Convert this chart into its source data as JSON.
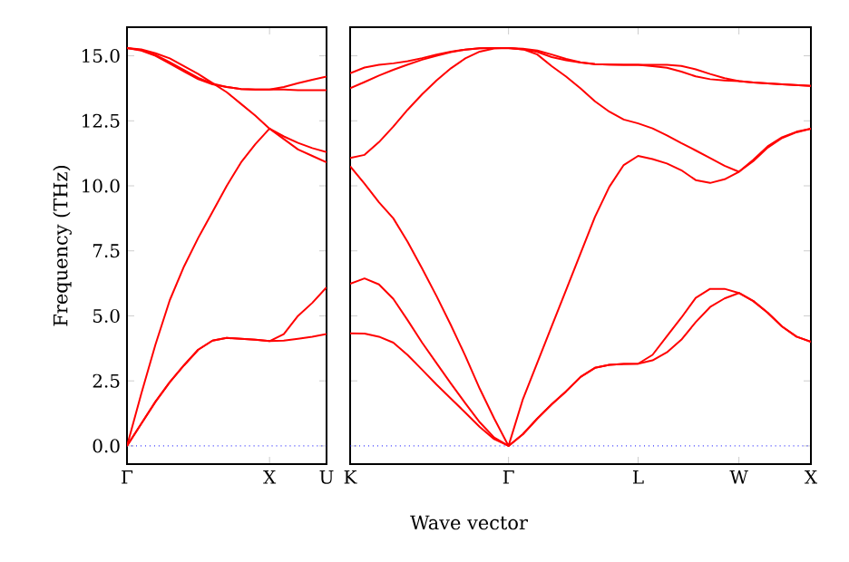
{
  "chart_data": [
    {
      "type": "line",
      "ylabel": "Frequency (THz)",
      "xlabel": "Wave vector",
      "categories": [
        "Γ",
        null,
        null,
        null,
        null,
        null,
        null,
        null,
        null,
        null,
        "X",
        null,
        null,
        null,
        "U"
      ],
      "series": [
        {
          "color": "#ff0000",
          "values": [
            0,
            0.85,
            1.7,
            2.45,
            3.1,
            3.7,
            4.05,
            4.15,
            4.12,
            4.08,
            4.03,
            4.05,
            4.12,
            4.2,
            4.3
          ]
        },
        {
          "color": "#ff0000",
          "values": [
            0,
            0.85,
            1.7,
            2.45,
            3.1,
            3.7,
            4.05,
            4.15,
            4.12,
            4.08,
            4.03,
            4.3,
            5.0,
            5.5,
            6.1
          ]
        },
        {
          "color": "#ff0000",
          "values": [
            0,
            2.0,
            3.9,
            5.6,
            6.9,
            8.0,
            9.0,
            10.0,
            10.9,
            11.6,
            12.2,
            11.8,
            11.4,
            11.15,
            10.9
          ]
        },
        {
          "color": "#ff0000",
          "values": [
            15.3,
            15.25,
            15.1,
            14.9,
            14.6,
            14.3,
            13.95,
            13.6,
            13.15,
            12.7,
            12.2,
            11.9,
            11.65,
            11.45,
            11.3
          ]
        },
        {
          "color": "#ff0000",
          "values": [
            15.3,
            15.2,
            15.0,
            14.7,
            14.4,
            14.1,
            13.9,
            13.8,
            13.72,
            13.7,
            13.7,
            13.7,
            13.68,
            13.68,
            13.68
          ]
        },
        {
          "color": "#ff0000",
          "values": [
            15.3,
            15.22,
            15.03,
            14.75,
            14.45,
            14.15,
            13.93,
            13.8,
            13.72,
            13.7,
            13.7,
            13.8,
            13.95,
            14.08,
            14.2
          ]
        }
      ],
      "ylim": [
        -0.7,
        16.1
      ],
      "yticks": [
        {
          "value": 0,
          "label": "0.0"
        },
        {
          "value": 2.5,
          "label": "2.5"
        },
        {
          "value": 5,
          "label": "5.0"
        },
        {
          "value": 7.5,
          "label": "7.5"
        },
        {
          "value": 10,
          "label": "10.0"
        },
        {
          "value": 12.5,
          "label": "12.5"
        },
        {
          "value": 15,
          "label": "15.0"
        }
      ],
      "ref_lines": [
        {
          "axis": "y",
          "value": 0,
          "color": "#0000ff",
          "line_style": "dotted"
        }
      ]
    },
    {
      "type": "line",
      "categories": [
        "K",
        null,
        null,
        null,
        null,
        null,
        null,
        null,
        null,
        null,
        null,
        "Γ",
        null,
        null,
        null,
        null,
        null,
        null,
        null,
        null,
        "L",
        null,
        null,
        null,
        null,
        null,
        null,
        "W",
        null,
        null,
        null,
        null,
        "X"
      ],
      "series": [
        {
          "color": "#ff0000",
          "values": [
            14.33,
            14.55,
            14.65,
            14.71,
            14.79,
            14.91,
            15.05,
            15.16,
            15.24,
            15.29,
            15.3,
            15.3,
            15.27,
            15.2,
            15.05,
            14.88,
            14.75,
            14.68,
            14.66,
            14.65,
            14.65,
            14.65,
            14.65,
            14.61,
            14.48,
            14.3,
            14.14,
            14.03,
            13.97,
            13.94,
            13.9,
            13.87,
            13.84
          ]
        },
        {
          "color": "#ff0000",
          "values": [
            13.75,
            13.99,
            14.24,
            14.46,
            14.66,
            14.85,
            15.0,
            15.14,
            15.24,
            15.29,
            15.3,
            15.3,
            15.25,
            15.15,
            14.95,
            14.83,
            14.74,
            14.68,
            14.66,
            14.65,
            14.65,
            14.6,
            14.54,
            14.39,
            14.21,
            14.1,
            14.05,
            14.03,
            13.97,
            13.94,
            13.9,
            13.87,
            13.84
          ]
        },
        {
          "color": "#ff0000",
          "values": [
            11.07,
            11.19,
            11.68,
            12.28,
            12.93,
            13.52,
            14.05,
            14.52,
            14.9,
            15.16,
            15.28,
            15.3,
            15.25,
            15.05,
            14.6,
            14.2,
            13.75,
            13.25,
            12.85,
            12.55,
            12.4,
            12.21,
            11.94,
            11.64,
            11.36,
            11.07,
            10.77,
            10.54,
            11.0,
            11.52,
            11.87,
            12.08,
            12.2
          ]
        },
        {
          "color": "#ff0000",
          "values": [
            10.75,
            10.08,
            9.37,
            8.75,
            7.84,
            6.82,
            5.76,
            4.64,
            3.46,
            2.2,
            1.06,
            0,
            1.8,
            3.2,
            4.6,
            6.0,
            7.4,
            8.8,
            9.96,
            10.8,
            11.15,
            11.03,
            10.86,
            10.6,
            10.22,
            10.11,
            10.25,
            10.54,
            10.95,
            11.47,
            11.84,
            12.06,
            12.2
          ]
        },
        {
          "color": "#ff0000",
          "values": [
            6.23,
            6.44,
            6.21,
            5.65,
            4.83,
            3.97,
            3.18,
            2.4,
            1.64,
            0.91,
            0.32,
            0,
            0.45,
            1.05,
            1.6,
            2.1,
            2.65,
            3.0,
            3.12,
            3.15,
            3.16,
            3.5,
            4.22,
            4.93,
            5.69,
            6.04,
            6.04,
            5.88,
            5.57,
            5.12,
            4.59,
            4.2,
            4.0
          ]
        },
        {
          "color": "#ff0000",
          "values": [
            4.33,
            4.32,
            4.2,
            3.97,
            3.49,
            2.93,
            2.36,
            1.82,
            1.28,
            0.73,
            0.26,
            0,
            0.45,
            1.05,
            1.6,
            2.1,
            2.65,
            3.0,
            3.12,
            3.15,
            3.16,
            3.29,
            3.6,
            4.08,
            4.76,
            5.34,
            5.67,
            5.88,
            5.57,
            5.12,
            4.59,
            4.2,
            4.0
          ]
        }
      ],
      "ylim": [
        -0.7,
        16.1
      ],
      "yticks": [
        {
          "value": 0,
          "label": null
        },
        {
          "value": 2.5,
          "label": null
        },
        {
          "value": 5,
          "label": null
        },
        {
          "value": 7.5,
          "label": null
        },
        {
          "value": 10,
          "label": null
        },
        {
          "value": 12.5,
          "label": null
        },
        {
          "value": 15,
          "label": null
        }
      ],
      "tick_labels": "x",
      "ref_lines": [
        {
          "axis": "y",
          "value": 0,
          "color": "#0000ff",
          "line_style": "dotted"
        }
      ]
    }
  ]
}
